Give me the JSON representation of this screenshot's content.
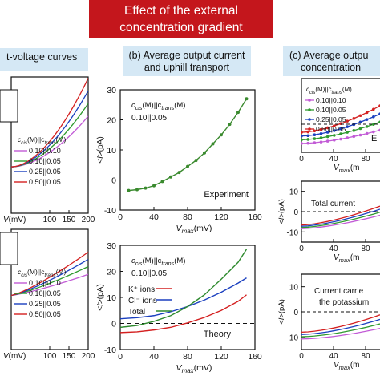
{
  "banner": {
    "line1": "Effect of the external",
    "line2": "concentration gradient"
  },
  "headers": {
    "a": "t-voltage curves",
    "b_line1": "(b) Average output current",
    "b_line2": "and uphill transport",
    "c_line1": "(c) Average outpu",
    "c_line2": "concentration"
  },
  "legend_common": {
    "cis_prefix": "c",
    "cis_sub": "cis",
    "mid": "(M)||c",
    "trans_sub": "trans",
    "suffix": "(M)"
  },
  "chart_data": [
    {
      "id": "b_top",
      "type": "line",
      "title": "",
      "xlabel": "V_max(mV)",
      "ylabel": "<I>(pA)",
      "xlim": [
        0,
        160
      ],
      "ylim": [
        -10,
        30
      ],
      "xticks": [
        0,
        40,
        80,
        120,
        160
      ],
      "yticks": [
        -10,
        0,
        10,
        20,
        30
      ],
      "legend": [
        "c_cis(M)||c_trans(M)",
        "0.10||0.05"
      ],
      "annotation": "Experiment",
      "series": [
        {
          "name": "",
          "color": "#3a8a2e",
          "x": [
            10,
            20,
            30,
            40,
            50,
            60,
            70,
            80,
            90,
            100,
            110,
            120,
            130,
            140,
            150
          ],
          "y": [
            -3.5,
            -3.2,
            -2.7,
            -1.9,
            -0.5,
            1.0,
            2.5,
            4.5,
            6.5,
            9.0,
            12.0,
            15.0,
            18.5,
            22.5,
            27.0
          ]
        }
      ]
    },
    {
      "id": "b_bottom",
      "type": "line",
      "title": "",
      "xlabel": "V_max(mV)",
      "ylabel": "<I>(pA)",
      "xlim": [
        0,
        160
      ],
      "ylim": [
        -10,
        30
      ],
      "xticks": [
        0,
        40,
        80,
        120,
        160
      ],
      "yticks": [
        -10,
        0,
        10,
        20,
        30
      ],
      "legend": [
        "c_cis(M)||c_trans(M)",
        "0.10||0.05"
      ],
      "annotation": "Theory",
      "series": [
        {
          "name": "K⁺ ions",
          "color": "#d42020",
          "x": [
            0,
            20,
            40,
            60,
            80,
            100,
            120,
            140,
            150
          ],
          "y": [
            -3.5,
            -3.2,
            -2.5,
            -1.5,
            0.2,
            2.3,
            5.0,
            8.5,
            11.0
          ]
        },
        {
          "name": "Cl⁻ ions",
          "color": "#1a3fbf",
          "x": [
            0,
            20,
            40,
            60,
            80,
            100,
            120,
            140,
            150
          ],
          "y": [
            1.8,
            2.2,
            3.0,
            4.5,
            6.5,
            9.0,
            12.0,
            15.5,
            17.5
          ]
        },
        {
          "name": "Total",
          "color": "#2e8a2e",
          "x": [
            0,
            20,
            40,
            60,
            80,
            100,
            120,
            140,
            150
          ],
          "y": [
            -1.5,
            -0.8,
            0.8,
            3.0,
            6.5,
            11.0,
            17.0,
            23.5,
            28.5
          ]
        }
      ]
    },
    {
      "id": "a_top",
      "type": "line",
      "title": "",
      "xlabel": "V(mV)",
      "ylabel": "",
      "xlim": [
        0,
        200
      ],
      "xticks": [
        100,
        150,
        200
      ],
      "legend_title": "c_cis(M)||c_trans(M)",
      "series": [
        {
          "name": "0.10||0.10",
          "color": "#c25bd6"
        },
        {
          "name": "0.10||0.05",
          "color": "#2e9a2e"
        },
        {
          "name": "0.25||0.05",
          "color": "#1a3fbf"
        },
        {
          "name": "0.50||0.05",
          "color": "#d42020"
        }
      ]
    },
    {
      "id": "a_bottom",
      "type": "line",
      "title": "",
      "xlabel": "V(mV)",
      "ylabel": "",
      "xlim": [
        0,
        200
      ],
      "xticks": [
        100,
        150,
        200
      ],
      "legend_title": "c_cis(M)||c_trans(M)",
      "series": [
        {
          "name": "0.10||0.10",
          "color": "#c25bd6"
        },
        {
          "name": "0.10||0.05",
          "color": "#2e9a2e"
        },
        {
          "name": "0.25||0.05",
          "color": "#1a3fbf"
        },
        {
          "name": "0.50||0.05",
          "color": "#d42020"
        }
      ]
    },
    {
      "id": "c_top",
      "type": "line",
      "title": "",
      "xlabel": "V_max(m",
      "xticks": [
        0,
        40,
        80
      ],
      "yticks": [],
      "annotation": "E",
      "legend_title": "c_cis(M)||c_trans(M)",
      "series": [
        {
          "name": "0.10||0.10",
          "color": "#c25bd6"
        },
        {
          "name": "0.10||0.05",
          "color": "#2e9a2e"
        },
        {
          "name": "0.25||0.05",
          "color": "#1a3fbf"
        },
        {
          "name": "0.50||0.05",
          "color": "#d42020"
        }
      ]
    },
    {
      "id": "c_mid",
      "type": "line",
      "title": "",
      "ylabel": "<I>(pA)",
      "xlabel": "V_max(m",
      "xticks": [
        0,
        40,
        80
      ],
      "yticks": [
        -10,
        0,
        10
      ],
      "annotation": "Total current"
    },
    {
      "id": "c_bottom",
      "type": "line",
      "title": "",
      "ylabel": "<I>(pA)",
      "xlabel": "V_max(m",
      "xticks": [
        0,
        40,
        80
      ],
      "yticks": [
        -10,
        0,
        10
      ],
      "annotation_line1": "Current carrie",
      "annotation_line2": "the potassium"
    }
  ]
}
